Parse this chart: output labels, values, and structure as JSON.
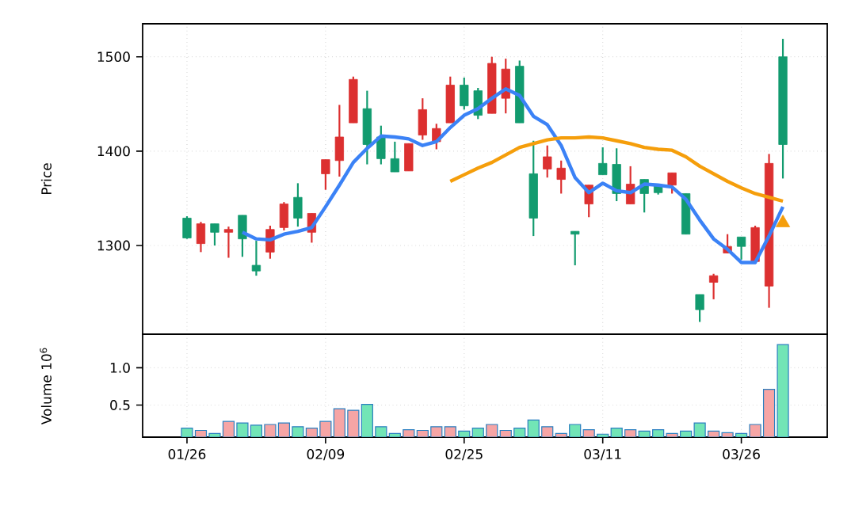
{
  "chart_data": [
    {
      "type": "candlestick",
      "ylabel": "Price",
      "tick_labels": "y",
      "grid": true,
      "categories": [
        null,
        null,
        null,
        null,
        null,
        null,
        null,
        null,
        null,
        null,
        null,
        null,
        null,
        null,
        null,
        null,
        null,
        null,
        null,
        null,
        null,
        null,
        null,
        null,
        null,
        null,
        null,
        null,
        null,
        null,
        null,
        null,
        null,
        null,
        null,
        null,
        null,
        null,
        null,
        null,
        null,
        null,
        null,
        null
      ],
      "ylim": [
        1206,
        1535
      ],
      "yticks": [
        1300,
        1400,
        1500
      ],
      "ohlc": [
        [
          1308,
          1331,
          1307,
          1329
        ],
        [
          1323,
          1325,
          1293,
          1302
        ],
        [
          1314,
          1323,
          1300,
          1323
        ],
        [
          1317,
          1320,
          1287,
          1314
        ],
        [
          1307,
          1332,
          1288,
          1332
        ],
        [
          1273,
          1305,
          1268,
          1279
        ],
        [
          1317,
          1321,
          1286,
          1293
        ],
        [
          1344,
          1346,
          1316,
          1319
        ],
        [
          1329,
          1366,
          1320,
          1351
        ],
        [
          1334,
          1334,
          1303,
          1314
        ],
        [
          1391,
          1391,
          1359,
          1376
        ],
        [
          1415,
          1449,
          1373,
          1390
        ],
        [
          1476,
          1479,
          1430,
          1430
        ],
        [
          1407,
          1464,
          1386,
          1445
        ],
        [
          1392,
          1427,
          1386,
          1415
        ],
        [
          1378,
          1410,
          1378,
          1392
        ],
        [
          1408,
          1408,
          1379,
          1379
        ],
        [
          1444,
          1456,
          1412,
          1417
        ],
        [
          1424,
          1429,
          1402,
          1410
        ],
        [
          1470,
          1479,
          1430,
          1430
        ],
        [
          1448,
          1478,
          1444,
          1470
        ],
        [
          1438,
          1467,
          1434,
          1464
        ],
        [
          1493,
          1500,
          1440,
          1440
        ],
        [
          1487,
          1498,
          1440,
          1456
        ],
        [
          1430,
          1496,
          1430,
          1490
        ],
        [
          1329,
          1411,
          1310,
          1376
        ],
        [
          1394,
          1406,
          1372,
          1381
        ],
        [
          1382,
          1390,
          1355,
          1370
        ],
        [
          1312,
          1315,
          1279,
          1315
        ],
        [
          1364,
          1364,
          1330,
          1344
        ],
        [
          1375,
          1404,
          1375,
          1387
        ],
        [
          1355,
          1403,
          1347,
          1386
        ],
        [
          1365,
          1384,
          1344,
          1344
        ],
        [
          1355,
          1370,
          1335,
          1370
        ],
        [
          1356,
          1364,
          1354,
          1364
        ],
        [
          1377,
          1377,
          1355,
          1364
        ],
        [
          1312,
          1355,
          1312,
          1355
        ],
        [
          1232,
          1248,
          1219,
          1248
        ],
        [
          1268,
          1270,
          1243,
          1261
        ],
        [
          1299,
          1312,
          1292,
          1292
        ],
        [
          1299,
          1309,
          1285,
          1309
        ],
        [
          1319,
          1321,
          1283,
          1283
        ],
        [
          1387,
          1397,
          1234,
          1257
        ],
        [
          1407,
          1519,
          1371,
          1500
        ]
      ],
      "colors": [
        "#129b6f",
        "#dc3030",
        "#129b6f",
        "#dc3030",
        "#129b6f",
        "#129b6f",
        "#dc3030",
        "#dc3030",
        "#129b6f",
        "#dc3030",
        "#dc3030",
        "#dc3030",
        "#dc3030",
        "#129b6f",
        "#129b6f",
        "#129b6f",
        "#dc3030",
        "#dc3030",
        "#dc3030",
        "#dc3030",
        "#129b6f",
        "#129b6f",
        "#dc3030",
        "#dc3030",
        "#129b6f",
        "#129b6f",
        "#dc3030",
        "#dc3030",
        "#129b6f",
        "#dc3030",
        "#129b6f",
        "#129b6f",
        "#dc3030",
        "#129b6f",
        "#129b6f",
        "#dc3030",
        "#129b6f",
        "#129b6f",
        "#dc3030",
        "#dc3030",
        "#129b6f",
        "#dc3030",
        "#dc3030",
        "#129b6f"
      ],
      "series": [
        {
          "type": "line",
          "color": "#3b82f6",
          "values": [
            null,
            null,
            null,
            null,
            1314,
            1307,
            1306,
            1312,
            1315,
            1319,
            1341,
            1364,
            1388,
            1403,
            1416,
            1415,
            1413,
            1406,
            1410,
            1425,
            1438,
            1445,
            1456,
            1466,
            1459,
            1437,
            1428,
            1406,
            1372,
            1356,
            1366,
            1358,
            1356,
            1365,
            1364,
            1362,
            1349,
            1327,
            1307,
            1296,
            1282,
            1282,
            1310,
            1341
          ]
        },
        {
          "type": "line",
          "color": "#f59e0b",
          "values": [
            null,
            null,
            null,
            null,
            null,
            null,
            null,
            null,
            null,
            null,
            null,
            null,
            null,
            null,
            null,
            null,
            null,
            null,
            null,
            1368,
            1375,
            1382,
            1388,
            1396,
            1404,
            1408,
            1412,
            1414,
            1414,
            1415,
            1414,
            1411,
            1408,
            1404,
            1402,
            1401,
            1394,
            1384,
            1376,
            1368,
            1361,
            1355,
            1351,
            1347
          ]
        },
        {
          "type": "scatter",
          "marker": "triangle",
          "color": "#f59e0b",
          "values": [
            null,
            null,
            null,
            null,
            null,
            null,
            null,
            null,
            null,
            null,
            null,
            null,
            null,
            null,
            null,
            null,
            null,
            null,
            null,
            null,
            null,
            null,
            null,
            null,
            null,
            null,
            null,
            null,
            null,
            null,
            null,
            null,
            null,
            null,
            null,
            null,
            null,
            null,
            null,
            null,
            null,
            null,
            null,
            1324
          ]
        }
      ]
    },
    {
      "type": "bar",
      "ylabel": "Volume  10$^{6}$",
      "grid": true,
      "categories": [
        "01/26",
        null,
        null,
        null,
        null,
        null,
        null,
        null,
        null,
        null,
        "02/09",
        null,
        null,
        null,
        null,
        null,
        null,
        null,
        null,
        null,
        "02/25",
        null,
        null,
        null,
        null,
        null,
        null,
        null,
        null,
        null,
        "03/11",
        null,
        null,
        null,
        null,
        null,
        null,
        null,
        null,
        null,
        "03/26",
        null,
        null,
        null
      ],
      "ylim": [
        0.07,
        1.45
      ],
      "yticks": [
        0.5,
        {
          "value": 1,
          "label": "1.0"
        }
      ],
      "values": [
        0.19,
        0.16,
        0.12,
        0.28,
        0.26,
        0.23,
        0.24,
        0.26,
        0.21,
        0.19,
        0.28,
        0.45,
        0.43,
        0.51,
        0.21,
        0.12,
        0.17,
        0.16,
        0.21,
        0.21,
        0.15,
        0.19,
        0.24,
        0.16,
        0.19,
        0.3,
        0.21,
        0.12,
        0.24,
        0.17,
        0.11,
        0.19,
        0.17,
        0.15,
        0.17,
        0.12,
        0.15,
        0.26,
        0.15,
        0.13,
        0.12,
        0.24,
        0.71,
        1.31
      ],
      "colors": [
        "#72e5b6",
        "#f6a5a5",
        "#72e5b6",
        "#f6a5a5",
        "#72e5b6",
        "#72e5b6",
        "#f6a5a5",
        "#f6a5a5",
        "#72e5b6",
        "#f6a5a5",
        "#f6a5a5",
        "#f6a5a5",
        "#f6a5a5",
        "#72e5b6",
        "#72e5b6",
        "#72e5b6",
        "#f6a5a5",
        "#f6a5a5",
        "#f6a5a5",
        "#f6a5a5",
        "#72e5b6",
        "#72e5b6",
        "#f6a5a5",
        "#f6a5a5",
        "#72e5b6",
        "#72e5b6",
        "#f6a5a5",
        "#f6a5a5",
        "#72e5b6",
        "#f6a5a5",
        "#72e5b6",
        "#72e5b6",
        "#f6a5a5",
        "#72e5b6",
        "#72e5b6",
        "#f6a5a5",
        "#72e5b6",
        "#72e5b6",
        "#f6a5a5",
        "#f6a5a5",
        "#72e5b6",
        "#f6a5a5",
        "#f6a5a5",
        "#72e5b6"
      ]
    }
  ]
}
